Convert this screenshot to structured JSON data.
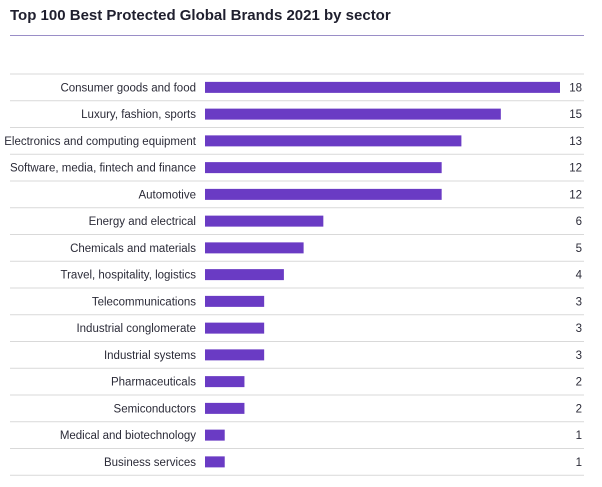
{
  "chart_data": {
    "type": "bar",
    "orientation": "horizontal",
    "title": "Top 100 Best Protected Global Brands 2021 by sector",
    "categories": [
      "Consumer goods and food",
      "Luxury, fashion, sports",
      "Electronics and computing equipment",
      "Software, media, fintech and finance",
      "Automotive",
      "Energy and electrical",
      "Chemicals and materials",
      "Travel, hospitality, logistics",
      "Telecommunications",
      "Industrial conglomerate",
      "Industrial systems",
      "Pharmaceuticals",
      "Semiconductors",
      "Medical and biotechnology",
      "Business services"
    ],
    "values": [
      18,
      15,
      13,
      12,
      12,
      6,
      5,
      4,
      3,
      3,
      3,
      2,
      2,
      1,
      1
    ],
    "xlim": [
      0,
      18
    ],
    "grid": true,
    "data_labels": "right",
    "legend": "none",
    "colors": {
      "bar": "#6a3bc4",
      "grid": "#d9d9d9",
      "title_rule": "#9a8ec7",
      "text": "#2b2b38"
    }
  }
}
